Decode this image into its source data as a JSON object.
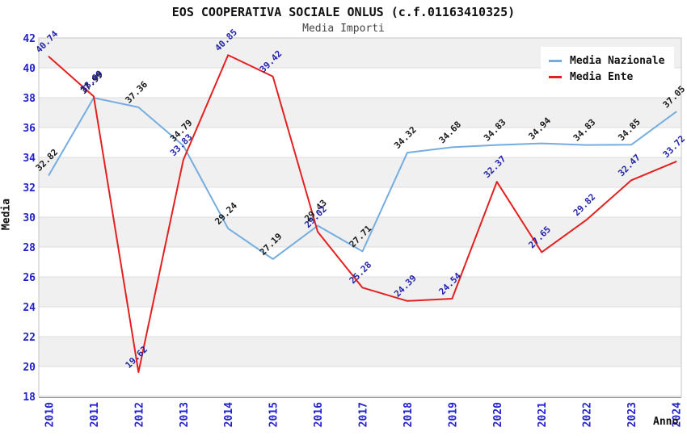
{
  "title": "EOS COOPERATIVA SOCIALE ONLUS (c.f.01163410325)",
  "subtitle": "Media Importi",
  "colors": {
    "nazionale_line": "#74ade0",
    "ente_line": "#e32020",
    "nazionale_label": "#1a1a1a",
    "ente_label": "#2323a8",
    "tick_label": "#2222cc",
    "band": "#f0f0f0",
    "grid": "#dcdcdc",
    "border": "#c6c6c6",
    "axis": "#999999"
  },
  "chart_data": {
    "type": "line",
    "x": [
      "2010",
      "2011",
      "2012",
      "2013",
      "2014",
      "2015",
      "2016",
      "2017",
      "2018",
      "2019",
      "2020",
      "2021",
      "2022",
      "2023",
      "2024"
    ],
    "series": [
      {
        "name": "Media Nazionale",
        "color": "#74ade0",
        "label_color": "#1a1a1a",
        "values": [
          32.82,
          37.99,
          37.36,
          34.79,
          29.24,
          27.19,
          29.43,
          27.71,
          34.32,
          34.68,
          34.83,
          34.94,
          34.83,
          34.85,
          37.05
        ]
      },
      {
        "name": "Media Ente",
        "color": "#e32020",
        "label_color": "#2323a8",
        "values": [
          40.74,
          38.09,
          19.62,
          33.83,
          40.85,
          39.42,
          29.02,
          25.28,
          24.39,
          24.54,
          32.37,
          27.65,
          29.82,
          32.47,
          33.72
        ]
      }
    ],
    "xlabel": "Anno",
    "ylabel": "Media",
    "ylim": [
      18,
      42
    ],
    "yticks": [
      18,
      20,
      22,
      24,
      26,
      28,
      30,
      32,
      34,
      36,
      38,
      40,
      42
    ],
    "grid": true,
    "banded_background": true,
    "legend_position": "top-right",
    "point_label_decimals": 2
  }
}
